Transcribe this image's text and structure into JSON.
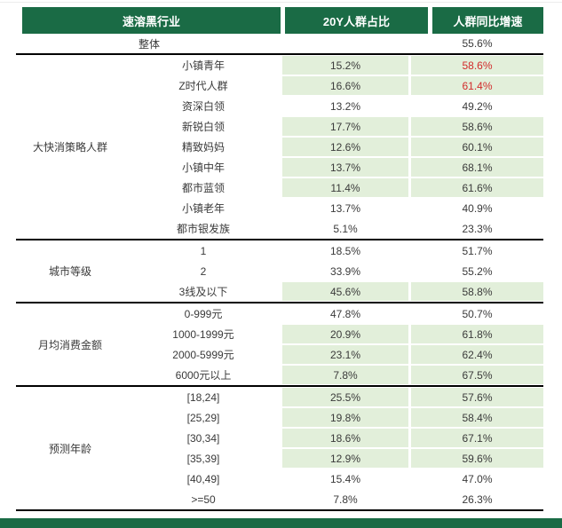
{
  "colors": {
    "header_green": "#1a6b45",
    "row_light_green": "#e2efda",
    "highlight_red": "#d22b2b"
  },
  "table": {
    "headers": [
      {
        "label": "速溶黑行业"
      },
      {
        "label": "20Y人群占比"
      },
      {
        "label": "人群同比增速"
      }
    ],
    "overall_row": {
      "label": "整体",
      "share": "",
      "growth": "55.6%"
    },
    "sections": [
      {
        "group": "大快消策略人群",
        "rows": [
          {
            "label": "小镇青年",
            "share": "15.2%",
            "growth": "58.6%",
            "highlight": true,
            "growth_red": true
          },
          {
            "label": "Z时代人群",
            "share": "16.6%",
            "growth": "61.4%",
            "highlight": true,
            "growth_red": true
          },
          {
            "label": "资深白领",
            "share": "13.2%",
            "growth": "49.2%",
            "highlight": false,
            "growth_red": false
          },
          {
            "label": "新锐白领",
            "share": "17.7%",
            "growth": "58.6%",
            "highlight": true,
            "growth_red": false
          },
          {
            "label": "精致妈妈",
            "share": "12.6%",
            "growth": "60.1%",
            "highlight": true,
            "growth_red": false
          },
          {
            "label": "小镇中年",
            "share": "13.7%",
            "growth": "68.1%",
            "highlight": true,
            "growth_red": false
          },
          {
            "label": "都市蓝领",
            "share": "11.4%",
            "growth": "61.6%",
            "highlight": true,
            "growth_red": false
          },
          {
            "label": "小镇老年",
            "share": "13.7%",
            "growth": "40.9%",
            "highlight": false,
            "growth_red": false
          },
          {
            "label": "都市银发族",
            "share": "5.1%",
            "growth": "23.3%",
            "highlight": false,
            "growth_red": false
          }
        ]
      },
      {
        "group": "城市等级",
        "rows": [
          {
            "label": "1",
            "share": "18.5%",
            "growth": "51.7%",
            "highlight": false,
            "growth_red": false
          },
          {
            "label": "2",
            "share": "33.9%",
            "growth": "55.2%",
            "highlight": false,
            "growth_red": false
          },
          {
            "label": "3线及以下",
            "share": "45.6%",
            "growth": "58.8%",
            "highlight": true,
            "growth_red": false
          }
        ]
      },
      {
        "group": "月均消费金额",
        "rows": [
          {
            "label": "0-999元",
            "share": "47.8%",
            "growth": "50.7%",
            "highlight": false,
            "growth_red": false
          },
          {
            "label": "1000-1999元",
            "share": "20.9%",
            "growth": "61.8%",
            "highlight": true,
            "growth_red": false
          },
          {
            "label": "2000-5999元",
            "share": "23.1%",
            "growth": "62.4%",
            "highlight": true,
            "growth_red": false
          },
          {
            "label": "6000元以上",
            "share": "7.8%",
            "growth": "67.5%",
            "highlight": true,
            "growth_red": false
          }
        ]
      },
      {
        "group": "预测年龄",
        "rows": [
          {
            "label": "[18,24]",
            "share": "25.5%",
            "growth": "57.6%",
            "highlight": true,
            "growth_red": false
          },
          {
            "label": "[25,29]",
            "share": "19.8%",
            "growth": "58.4%",
            "highlight": true,
            "growth_red": false
          },
          {
            "label": "[30,34]",
            "share": "18.6%",
            "growth": "67.1%",
            "highlight": true,
            "growth_red": false
          },
          {
            "label": "[35,39]",
            "share": "12.9%",
            "growth": "59.6%",
            "highlight": true,
            "growth_red": false
          },
          {
            "label": "[40,49]",
            "share": "15.4%",
            "growth": "47.0%",
            "highlight": false,
            "growth_red": false
          },
          {
            "label": ">=50",
            "share": "7.8%",
            "growth": "26.3%",
            "highlight": false,
            "growth_red": false
          }
        ]
      }
    ]
  }
}
